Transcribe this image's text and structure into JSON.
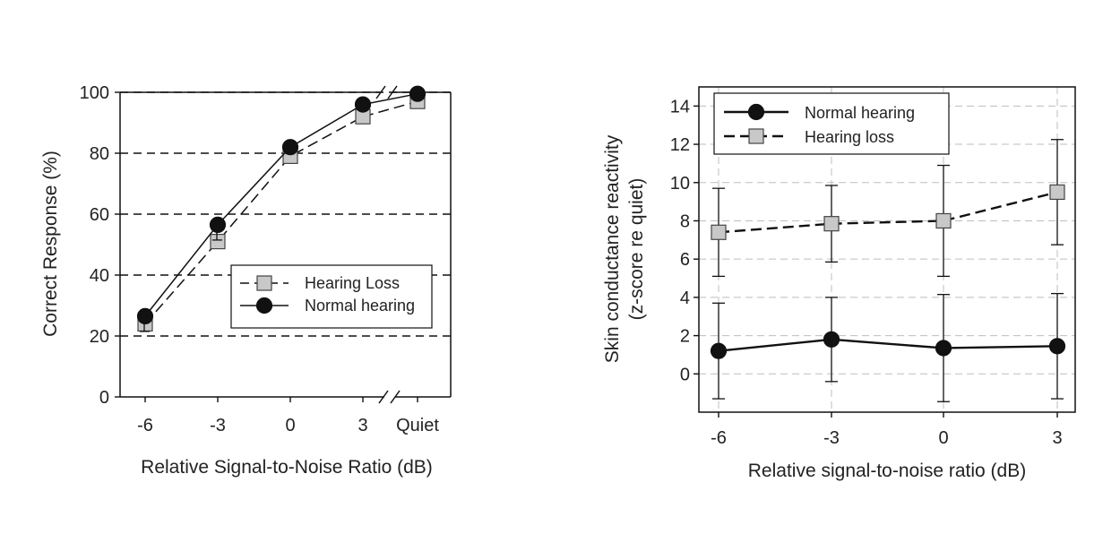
{
  "chart_data": [
    {
      "type": "line",
      "xlabel": "Relative Signal-to-Noise Ratio (dB)",
      "ylabel": "Correct Response (%)",
      "categories": [
        "-6",
        "-3",
        "0",
        "3",
        "Quiet"
      ],
      "ylim": [
        0,
        100
      ],
      "yticks": [
        0,
        20,
        40,
        60,
        80,
        100
      ],
      "grid": "horizontal-dashed",
      "axis_break": "between 3 and Quiet",
      "legend_position": "center-right",
      "series": [
        {
          "name": "Hearing Loss",
          "marker": "square",
          "line": "dashed",
          "color": "#c8c8c8",
          "values": [
            24,
            51,
            79,
            92,
            97
          ],
          "err": [
            3,
            5,
            2,
            0,
            0
          ]
        },
        {
          "name": "Normal hearing",
          "marker": "circle",
          "line": "solid",
          "color": "#111111",
          "values": [
            26.5,
            56.5,
            82,
            96,
            99.5
          ],
          "err": [
            5,
            5,
            2,
            0,
            0
          ]
        }
      ]
    },
    {
      "type": "line",
      "xlabel": "Relative signal-to-noise ratio (dB)",
      "ylabel": "Skin conductance reactivity",
      "ylabel2": "(z-score re quiet)",
      "categories": [
        "-6",
        "-3",
        "0",
        "3"
      ],
      "x": [
        -6,
        -3,
        0,
        3
      ],
      "ylim": [
        -2,
        15
      ],
      "yticks": [
        0,
        2,
        4,
        6,
        8,
        10,
        12,
        14
      ],
      "grid": "both-dashed",
      "legend_position": "top-left",
      "series": [
        {
          "name": "Normal hearing",
          "marker": "circle",
          "line": "solid",
          "color": "#111111",
          "values": [
            1.2,
            1.8,
            1.35,
            1.45
          ],
          "err": [
            2.5,
            2.2,
            2.8,
            2.75
          ]
        },
        {
          "name": "Hearing loss",
          "marker": "square",
          "line": "dashed",
          "color": "#c8c8c8",
          "values": [
            7.4,
            7.85,
            8.0,
            9.5
          ],
          "err": [
            2.3,
            2.0,
            2.9,
            2.75
          ]
        }
      ]
    }
  ]
}
